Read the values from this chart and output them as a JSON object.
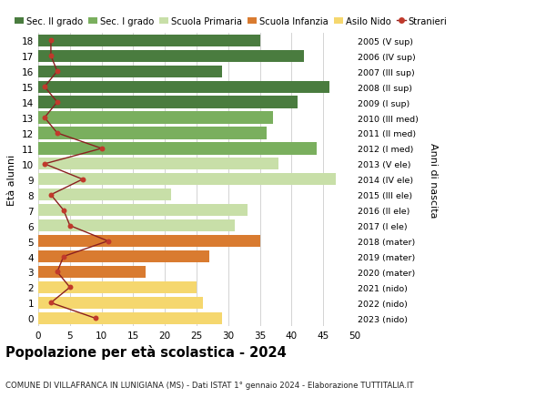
{
  "ages": [
    18,
    17,
    16,
    15,
    14,
    13,
    12,
    11,
    10,
    9,
    8,
    7,
    6,
    5,
    4,
    3,
    2,
    1,
    0
  ],
  "bar_values": [
    35,
    42,
    29,
    46,
    41,
    37,
    36,
    44,
    38,
    47,
    21,
    33,
    31,
    35,
    27,
    17,
    25,
    26,
    29
  ],
  "anni_nascita": [
    "2005 (V sup)",
    "2006 (IV sup)",
    "2007 (III sup)",
    "2008 (II sup)",
    "2009 (I sup)",
    "2010 (III med)",
    "2011 (II med)",
    "2012 (I med)",
    "2013 (V ele)",
    "2014 (IV ele)",
    "2015 (III ele)",
    "2016 (II ele)",
    "2017 (I ele)",
    "2018 (mater)",
    "2019 (mater)",
    "2020 (mater)",
    "2021 (nido)",
    "2022 (nido)",
    "2023 (nido)"
  ],
  "stranieri": [
    2,
    2,
    3,
    1,
    3,
    1,
    3,
    10,
    1,
    7,
    2,
    4,
    5,
    11,
    4,
    3,
    5,
    2,
    9
  ],
  "bar_colors": [
    "#4a7c3f",
    "#4a7c3f",
    "#4a7c3f",
    "#4a7c3f",
    "#4a7c3f",
    "#7aaf5e",
    "#7aaf5e",
    "#7aaf5e",
    "#c8dfa8",
    "#c8dfa8",
    "#c8dfa8",
    "#c8dfa8",
    "#c8dfa8",
    "#d97b30",
    "#d97b30",
    "#d97b30",
    "#f5d76e",
    "#f5d76e",
    "#f5d76e"
  ],
  "legend_labels": [
    "Sec. II grado",
    "Sec. I grado",
    "Scuola Primaria",
    "Scuola Infanzia",
    "Asilo Nido",
    "Stranieri"
  ],
  "legend_colors": [
    "#4a7c3f",
    "#7aaf5e",
    "#c8dfa8",
    "#d97b30",
    "#f5d76e",
    "#c0392b"
  ],
  "stranieri_line_color": "#8b2020",
  "stranieri_dot_color": "#c0392b",
  "title": "Popolazione per età scolastica - 2024",
  "subtitle": "COMUNE DI VILLAFRANCA IN LUNIGIANA (MS) - Dati ISTAT 1° gennaio 2024 - Elaborazione TUTTITALIA.IT",
  "ylabel": "Età alunni",
  "right_ylabel": "Anni di nascita",
  "xlim": [
    0,
    50
  ],
  "xticks": [
    0,
    5,
    10,
    15,
    20,
    25,
    30,
    35,
    40,
    45,
    50
  ],
  "background_color": "#ffffff",
  "grid_color": "#cccccc"
}
